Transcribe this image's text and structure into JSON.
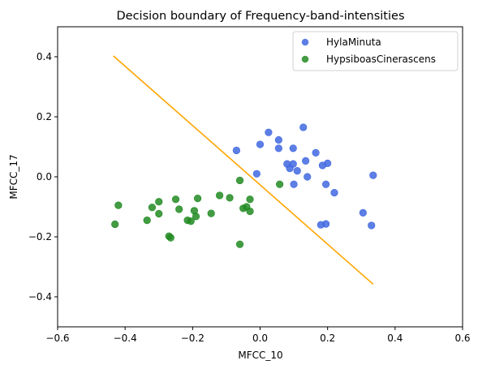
{
  "chart_data": {
    "type": "scatter",
    "title": "Decision boundary of Frequency-band-intensities",
    "xlabel": "MFCC_10",
    "ylabel": "MFCC_17",
    "xlim": [
      -0.6,
      0.6
    ],
    "ylim": [
      -0.5,
      0.5
    ],
    "x_ticks": [
      "−0.6",
      "−0.4",
      "−0.2",
      "0.0",
      "0.2",
      "0.4",
      "0.6"
    ],
    "x_tick_values": [
      -0.6,
      -0.4,
      -0.2,
      0.0,
      0.2,
      0.4,
      0.6
    ],
    "y_ticks": [
      "−0.4",
      "−0.2",
      "0.0",
      "0.2",
      "0.4"
    ],
    "y_tick_values": [
      -0.4,
      -0.2,
      0.0,
      0.2,
      0.4
    ],
    "grid": false,
    "legend_position": "top-right",
    "series": [
      {
        "name": "HylaMinuta",
        "color": "#4169e1",
        "points": [
          [
            -0.07,
            0.088
          ],
          [
            0.025,
            0.148
          ],
          [
            0.0,
            0.108
          ],
          [
            0.055,
            0.123
          ],
          [
            0.055,
            0.095
          ],
          [
            0.128,
            0.165
          ],
          [
            0.098,
            0.095
          ],
          [
            0.165,
            0.08
          ],
          [
            0.135,
            0.053
          ],
          [
            0.08,
            0.043
          ],
          [
            0.098,
            0.043
          ],
          [
            0.088,
            0.028
          ],
          [
            0.11,
            0.02
          ],
          [
            0.185,
            0.038
          ],
          [
            0.2,
            0.045
          ],
          [
            0.14,
            0.0
          ],
          [
            -0.01,
            0.01
          ],
          [
            0.1,
            -0.025
          ],
          [
            0.195,
            -0.025
          ],
          [
            0.22,
            -0.053
          ],
          [
            0.335,
            0.005
          ],
          [
            0.305,
            -0.12
          ],
          [
            0.33,
            -0.162
          ],
          [
            0.18,
            -0.16
          ],
          [
            0.195,
            -0.157
          ]
        ]
      },
      {
        "name": "HypsiboasCinerascens",
        "color": "#228b22",
        "points": [
          [
            -0.43,
            -0.158
          ],
          [
            -0.42,
            -0.095
          ],
          [
            -0.335,
            -0.145
          ],
          [
            -0.32,
            -0.102
          ],
          [
            -0.3,
            -0.083
          ],
          [
            -0.3,
            -0.123
          ],
          [
            -0.25,
            -0.075
          ],
          [
            -0.24,
            -0.108
          ],
          [
            -0.215,
            -0.145
          ],
          [
            -0.205,
            -0.148
          ],
          [
            -0.195,
            -0.113
          ],
          [
            -0.19,
            -0.132
          ],
          [
            -0.185,
            -0.072
          ],
          [
            -0.145,
            -0.122
          ],
          [
            -0.12,
            -0.062
          ],
          [
            -0.09,
            -0.07
          ],
          [
            -0.06,
            -0.012
          ],
          [
            -0.05,
            -0.105
          ],
          [
            -0.04,
            -0.1
          ],
          [
            -0.03,
            -0.075
          ],
          [
            -0.03,
            -0.115
          ],
          [
            0.058,
            -0.025
          ],
          [
            -0.27,
            -0.198
          ],
          [
            -0.265,
            -0.203
          ],
          [
            -0.06,
            -0.225
          ]
        ]
      }
    ],
    "decision_boundary": {
      "color": "#ffa500",
      "from": [
        -0.435,
        0.403
      ],
      "to": [
        0.335,
        -0.358
      ]
    }
  }
}
